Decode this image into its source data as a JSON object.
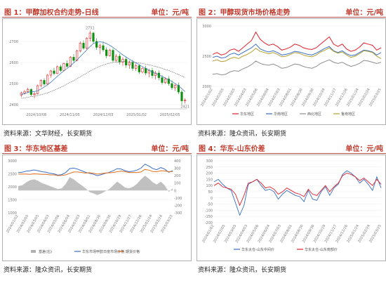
{
  "panels": [
    {
      "title": "图 1：甲醇加权合约走势-日线",
      "unit": "单位：元/吨",
      "source": "资料来源：文华财经，长安期货"
    },
    {
      "title": "图 2：甲醇现货市场价格走势",
      "unit": "单位：元/吨",
      "source": "资料来源：隆众资讯，长安期货"
    },
    {
      "title": "图 3：华东地区基差",
      "unit": "单位：元/吨",
      "source": "资料来源：隆众资讯，长安期货"
    },
    {
      "title": "图 4：华东-山东价差",
      "unit": "单位：元/吨",
      "source": "资料来源：隆众资讯，长安期货"
    }
  ],
  "chart_data": [
    {
      "type": "candlestick",
      "title": "甲醇加权合约走势-日线",
      "peak_label": "2751",
      "last_label": "2421",
      "candles": [
        [
          2445,
          2462,
          2436,
          2455
        ],
        [
          2455,
          2470,
          2448,
          2462
        ],
        [
          2462,
          2480,
          2455,
          2472
        ],
        [
          2472,
          2478,
          2440,
          2448
        ],
        [
          2448,
          2460,
          2430,
          2452
        ],
        [
          2452,
          2495,
          2448,
          2490
        ],
        [
          2490,
          2520,
          2482,
          2515
        ],
        [
          2515,
          2525,
          2490,
          2498
        ],
        [
          2498,
          2545,
          2495,
          2540
        ],
        [
          2540,
          2565,
          2528,
          2560
        ],
        [
          2560,
          2575,
          2540,
          2548
        ],
        [
          2548,
          2585,
          2545,
          2580
        ],
        [
          2580,
          2590,
          2555,
          2562
        ],
        [
          2562,
          2600,
          2558,
          2595
        ],
        [
          2595,
          2610,
          2575,
          2582
        ],
        [
          2582,
          2630,
          2578,
          2625
        ],
        [
          2625,
          2640,
          2600,
          2610
        ],
        [
          2610,
          2660,
          2605,
          2655
        ],
        [
          2655,
          2700,
          2648,
          2692
        ],
        [
          2692,
          2705,
          2660,
          2668
        ],
        [
          2668,
          2720,
          2662,
          2715
        ],
        [
          2715,
          2751,
          2700,
          2740
        ],
        [
          2740,
          2745,
          2690,
          2700
        ],
        [
          2700,
          2715,
          2660,
          2672
        ],
        [
          2672,
          2690,
          2640,
          2680
        ],
        [
          2680,
          2700,
          2650,
          2660
        ],
        [
          2660,
          2672,
          2620,
          2632
        ],
        [
          2632,
          2665,
          2628,
          2658
        ],
        [
          2658,
          2668,
          2600,
          2610
        ],
        [
          2610,
          2640,
          2600,
          2630
        ],
        [
          2630,
          2642,
          2590,
          2602
        ],
        [
          2602,
          2625,
          2585,
          2615
        ],
        [
          2615,
          2628,
          2575,
          2588
        ],
        [
          2588,
          2610,
          2570,
          2600
        ],
        [
          2600,
          2612,
          2560,
          2572
        ],
        [
          2572,
          2595,
          2560,
          2585
        ],
        [
          2585,
          2592,
          2545,
          2555
        ],
        [
          2555,
          2580,
          2548,
          2572
        ],
        [
          2572,
          2585,
          2540,
          2550
        ],
        [
          2550,
          2570,
          2530,
          2562
        ],
        [
          2562,
          2575,
          2525,
          2538
        ],
        [
          2538,
          2560,
          2520,
          2550
        ],
        [
          2550,
          2562,
          2515,
          2528
        ],
        [
          2528,
          2540,
          2495,
          2505
        ],
        [
          2505,
          2530,
          2498,
          2522
        ],
        [
          2522,
          2535,
          2490,
          2500
        ],
        [
          2500,
          2515,
          2470,
          2480
        ],
        [
          2480,
          2500,
          2465,
          2492
        ],
        [
          2492,
          2505,
          2450,
          2460
        ],
        [
          2460,
          2470,
          2400,
          2418
        ],
        [
          2418,
          2430,
          2405,
          2421
        ]
      ],
      "ma_fast": [
        2448,
        2452,
        2458,
        2462,
        2462,
        2466,
        2474,
        2484,
        2494,
        2506,
        2520,
        2534,
        2548,
        2560,
        2572,
        2584,
        2598,
        2612,
        2628,
        2644,
        2660,
        2676,
        2690,
        2696,
        2698,
        2696,
        2690,
        2682,
        2672,
        2660,
        2648,
        2636,
        2626,
        2616,
        2606,
        2598,
        2590,
        2580,
        2572,
        2564,
        2556,
        2548,
        2542,
        2534,
        2526,
        2518,
        2510,
        2500,
        2490,
        2476,
        2462
      ],
      "ma_slow": [
        2430,
        2432,
        2435,
        2438,
        2440,
        2443,
        2447,
        2451,
        2456,
        2462,
        2468,
        2475,
        2482,
        2490,
        2498,
        2506,
        2514,
        2523,
        2532,
        2541,
        2550,
        2560,
        2568,
        2575,
        2582,
        2588,
        2593,
        2597,
        2600,
        2602,
        2603,
        2604,
        2604,
        2603,
        2602,
        2600,
        2598,
        2595,
        2592,
        2589,
        2585,
        2581,
        2577,
        2572,
        2567,
        2562,
        2556,
        2550,
        2543,
        2536,
        2528
      ],
      "ylim": [
        2380,
        2780
      ],
      "yticks": [
        2400,
        2500,
        2600,
        2700
      ],
      "xlabels": [
        "2024/10/08",
        "2024/11/05",
        "2024/12/03",
        "2025/01/02",
        "2025/02/05"
      ],
      "colors": {
        "up": "#e02020",
        "down": "#109010",
        "ma_fast": "#2d6fb7",
        "ma_slow": "#555555"
      }
    },
    {
      "type": "line",
      "title": "甲醇现货市场价格走势",
      "ylim": [
        2000,
        3000
      ],
      "yticks": [
        2000,
        2500,
        3000
      ],
      "xlabels": [
        "2024/01/02",
        "2024/02/05",
        "2024/03/05",
        "2024/04/03",
        "2024/05/06",
        "2024/06/04",
        "2024/07/03",
        "2024/08/01",
        "2024/08/30",
        "2024/09/30",
        "2024/10/29",
        "2024/11/27",
        "2024/12/26",
        "2025/01/24",
        "2025/02/24",
        "2025/03/25"
      ],
      "series": [
        {
          "name": "华东地区",
          "color": "#e0202a",
          "values": [
            2530,
            2560,
            2520,
            2540,
            2600,
            2620,
            2580,
            2640,
            2700,
            2760,
            2900,
            2780,
            2720,
            2680,
            2700,
            2660,
            2600,
            2620,
            2650,
            2700,
            2680,
            2640,
            2620,
            2610,
            2640,
            2700,
            2760,
            2820,
            2700,
            2660,
            2700,
            2620,
            2580,
            2600,
            2650,
            2720,
            2700,
            2680,
            2600,
            2640
          ]
        },
        {
          "name": "华南地区",
          "color": "#3a6fc4",
          "values": [
            2480,
            2500,
            2470,
            2480,
            2530,
            2550,
            2520,
            2560,
            2600,
            2640,
            2700,
            2620,
            2590,
            2570,
            2590,
            2560,
            2520,
            2530,
            2550,
            2580,
            2570,
            2550,
            2530,
            2520,
            2550,
            2590,
            2630,
            2660,
            2590,
            2560,
            2590,
            2540,
            2510,
            2520,
            2560,
            2600,
            2590,
            2570,
            2520,
            2560
          ]
        },
        {
          "name": "西北地区",
          "color": "#8e8e8e",
          "values": [
            2200,
            2210,
            2190,
            2200,
            2240,
            2260,
            2250,
            2290,
            2320,
            2360,
            2420,
            2380,
            2360,
            2350,
            2370,
            2340,
            2300,
            2310,
            2340,
            2370,
            2360,
            2330,
            2310,
            2300,
            2330,
            2380,
            2410,
            2440,
            2400,
            2380,
            2400,
            2360,
            2330,
            2350,
            2380,
            2430,
            2420,
            2400,
            2380,
            2400
          ]
        },
        {
          "name": "鲁南地区",
          "color": "#b5a030",
          "values": [
            2420,
            2440,
            2410,
            2420,
            2460,
            2480,
            2460,
            2500,
            2530,
            2570,
            2630,
            2580,
            2560,
            2540,
            2560,
            2530,
            2490,
            2500,
            2530,
            2560,
            2550,
            2520,
            2500,
            2490,
            2520,
            2570,
            2600,
            2640,
            2580,
            2550,
            2570,
            2520,
            2480,
            2500,
            2540,
            2590,
            2580,
            2560,
            2500,
            2460
          ]
        }
      ]
    },
    {
      "type": "line",
      "title": "华东地区基差",
      "ylim": [
        1000,
        3000
      ],
      "ylim_right": [
        -300,
        400
      ],
      "yticks": [
        1000,
        1500,
        2000,
        2500,
        3000
      ],
      "yticks_right": [
        -300,
        -200,
        -100,
        0,
        100,
        200,
        300,
        400
      ],
      "xlabels": [
        "2024/01/02",
        "2024/02/05",
        "2024/03/05",
        "2024/04/03",
        "2024/05/06",
        "2024/06/04",
        "2024/07/03",
        "2024/08/01",
        "2024/08/30",
        "2024/09/30",
        "2024/10/29",
        "2024/11/27",
        "2024/12/26",
        "2025/01/24",
        "2025/02/24",
        "2025/03/25"
      ],
      "series": [
        {
          "name": "基差(右)",
          "color": "#b0b0b0",
          "values": [
            60,
            70,
            110,
            140,
            150,
            130,
            100,
            80,
            60,
            40,
            20,
            30,
            90,
            180,
            150,
            110,
            70,
            30,
            -20,
            -40,
            -60,
            -40,
            -10,
            20,
            70,
            120,
            80,
            40,
            30,
            50,
            90,
            150,
            200,
            160,
            110,
            80,
            120,
            70,
            -20,
            30
          ]
        },
        {
          "name": "华东市场甲醇日度市场价格",
          "color": "#3a6fc4",
          "values": [
            2550,
            2560,
            2600,
            2620,
            2650,
            2620,
            2580,
            2560,
            2520,
            2500,
            2450,
            2470,
            2550,
            2700,
            2720,
            2680,
            2620,
            2560,
            2520,
            2480,
            2430,
            2470,
            2520,
            2560,
            2620,
            2700,
            2680,
            2620,
            2580,
            2600,
            2640,
            2720,
            2870,
            2800,
            2700,
            2660,
            2740,
            2680,
            2560,
            2620
          ]
        },
        {
          "name": "期货价格",
          "color": "#e07020",
          "values": [
            2490,
            2490,
            2490,
            2480,
            2500,
            2490,
            2480,
            2480,
            2460,
            2460,
            2430,
            2440,
            2460,
            2520,
            2570,
            2570,
            2550,
            2530,
            2540,
            2520,
            2490,
            2510,
            2530,
            2540,
            2550,
            2580,
            2600,
            2580,
            2550,
            2550,
            2550,
            2570,
            2670,
            2640,
            2590,
            2580,
            2620,
            2610,
            2580,
            2590
          ]
        }
      ]
    },
    {
      "type": "line",
      "title": "华东-山东价差",
      "ylim": [
        -200,
        300
      ],
      "yticks": [
        -200,
        -150,
        -100,
        -50,
        0,
        50,
        100,
        150,
        200,
        250,
        300
      ],
      "xlabels": [
        "2024/01/02",
        "2024/02/05",
        "2024/03/05",
        "2024/04/03",
        "2024/05/06",
        "2024/06/04",
        "2024/07/03",
        "2024/08/01",
        "2024/08/30",
        "2024/09/30",
        "2024/10/29",
        "2024/11/27",
        "2024/12/26",
        "2025/01/24",
        "2025/02/24",
        "2025/03/25"
      ],
      "series": [
        {
          "name": "华东太仓-山东中间价",
          "color": "#3a6fc4",
          "values": [
            130,
            150,
            110,
            80,
            60,
            -40,
            -140,
            -60,
            110,
            130,
            150,
            100,
            60,
            70,
            50,
            -10,
            30,
            60,
            40,
            20,
            10,
            -30,
            60,
            -10,
            -20,
            50,
            90,
            20,
            80,
            110,
            190,
            220,
            200,
            170,
            120,
            150,
            110,
            60,
            170,
            80
          ]
        },
        {
          "name": "华东太仓-山东南部价",
          "color": "#e0202a",
          "values": [
            100,
            120,
            90,
            80,
            70,
            30,
            -60,
            20,
            120,
            130,
            150,
            120,
            80,
            90,
            70,
            30,
            50,
            80,
            60,
            40,
            30,
            10,
            70,
            30,
            20,
            60,
            100,
            50,
            90,
            120,
            180,
            200,
            190,
            170,
            140,
            160,
            130,
            100,
            150,
            110
          ]
        }
      ]
    }
  ]
}
